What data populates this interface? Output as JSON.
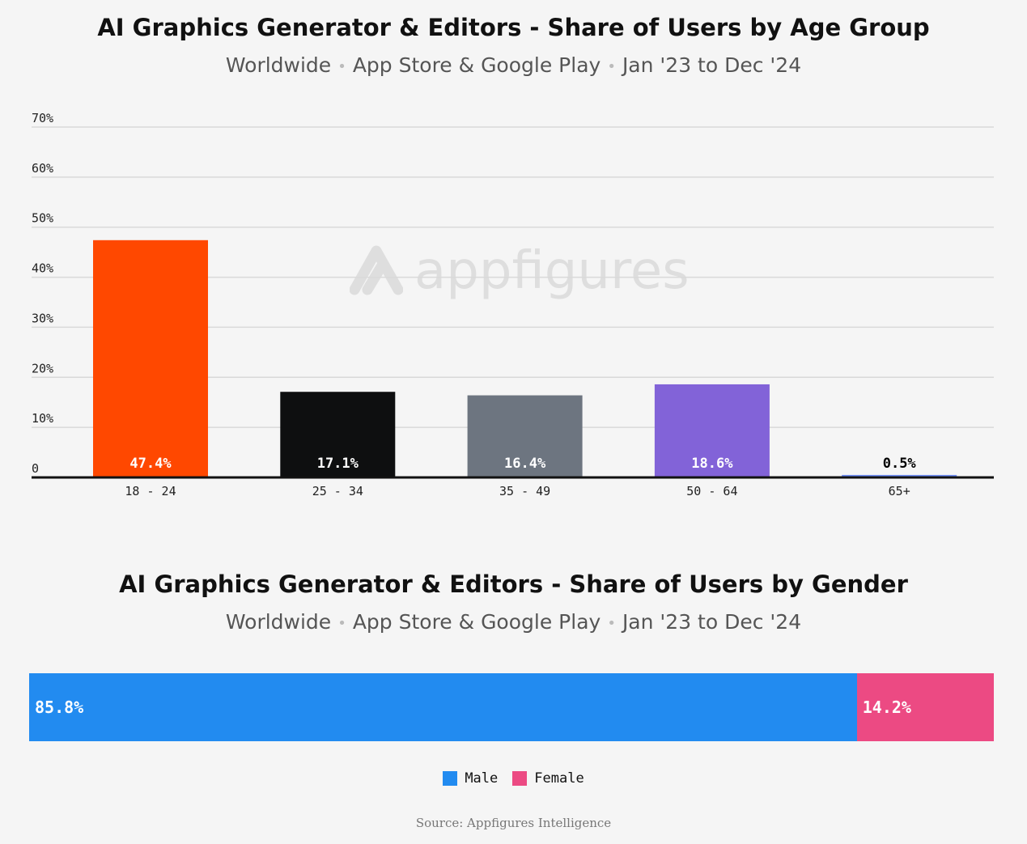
{
  "colors": {
    "background": "#f5f5f5",
    "grid": "#d9d9d9",
    "baseline": "#111111"
  },
  "watermark": {
    "text": "appfigures",
    "icon": "appfigures-logo-icon"
  },
  "source": "Source: Appfigures Intelligence",
  "chart_data": [
    {
      "type": "bar",
      "title": "AI Graphics Generator & Editors - Share of Users by Age Group",
      "subtitle_parts": [
        "Worldwide",
        "App Store & Google Play",
        "Jan '23 to Dec '24"
      ],
      "separator": "•",
      "categories": [
        "18 - 24",
        "25 - 34",
        "35 - 49",
        "50 - 64",
        "65+"
      ],
      "values": [
        47.4,
        17.1,
        16.4,
        18.6,
        0.5
      ],
      "value_labels": [
        "47.4%",
        "17.1%",
        "16.4%",
        "18.6%",
        "0.5%"
      ],
      "bar_colors": [
        "#ff4800",
        "#0e0f10",
        "#6d7580",
        "#8263d8",
        "#6f8ef5"
      ],
      "label_colors": [
        "#ffffff",
        "#ffffff",
        "#ffffff",
        "#ffffff",
        "#000000"
      ],
      "y_ticks": [
        0,
        10,
        20,
        30,
        40,
        50,
        60,
        70
      ],
      "y_tick_labels": [
        "0",
        "10%",
        "20%",
        "30%",
        "40%",
        "50%",
        "60%",
        "70%"
      ],
      "ylim": [
        0,
        70
      ],
      "grid": true
    },
    {
      "type": "bar",
      "stacked": true,
      "orientation": "horizontal",
      "title": "AI Graphics Generator & Editors - Share of Users by Gender",
      "subtitle_parts": [
        "Worldwide",
        "App Store & Google Play",
        "Jan '23 to Dec '24"
      ],
      "separator": "•",
      "series": [
        {
          "name": "Male",
          "value": 85.8,
          "label": "85.8%",
          "color": "#228bf0"
        },
        {
          "name": "Female",
          "value": 14.2,
          "label": "14.2%",
          "color": "#ec4a83"
        }
      ],
      "legend_position": "bottom-center"
    }
  ]
}
